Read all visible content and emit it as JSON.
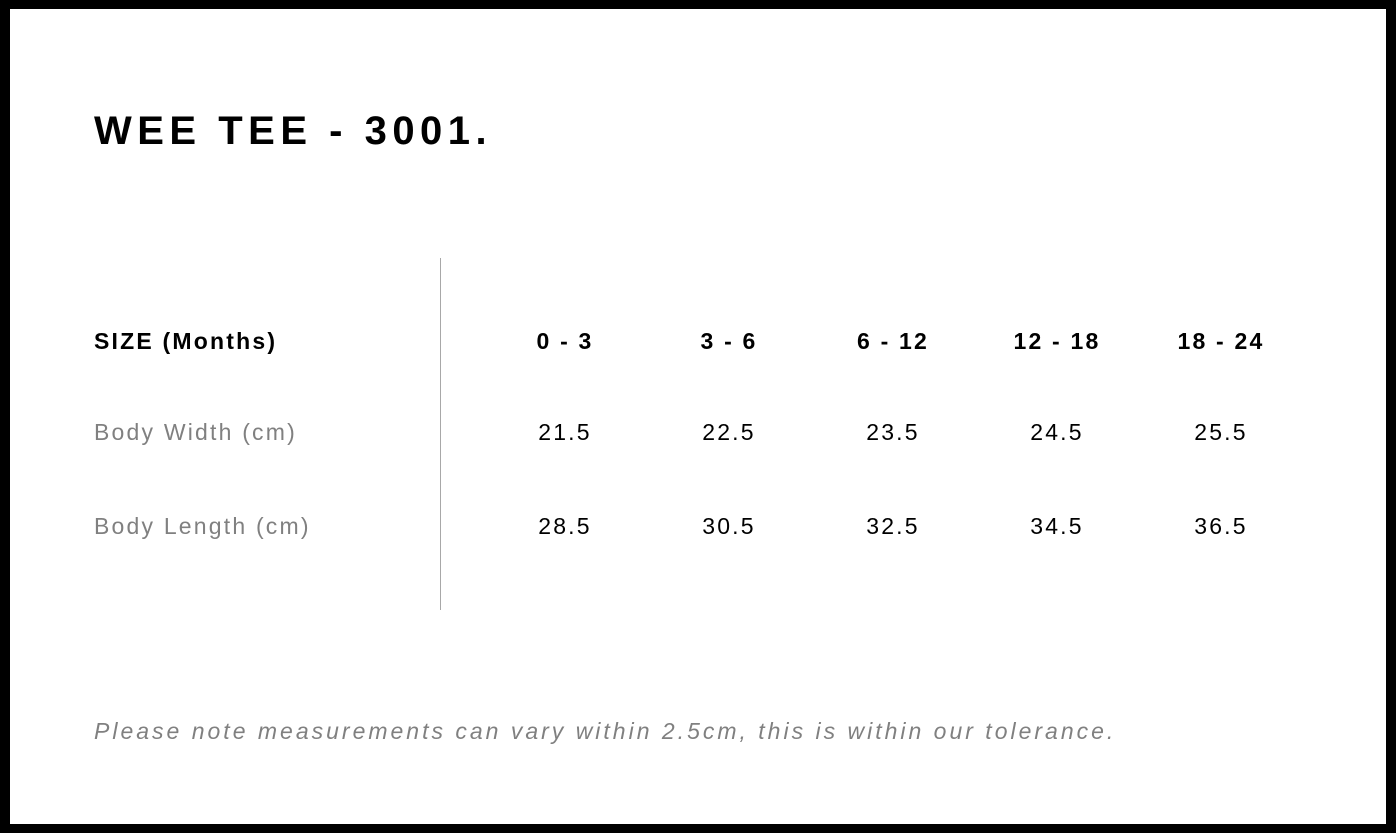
{
  "title": "WEE TEE - 3001.",
  "table": {
    "header": {
      "label": "SIZE (Months)",
      "sizes": [
        "0 - 3",
        "3 - 6",
        "6 - 12",
        "12 - 18",
        "18 - 24"
      ]
    },
    "rows": [
      {
        "label": "Body Width (cm)",
        "values": [
          "21.5",
          "22.5",
          "23.5",
          "24.5",
          "25.5"
        ]
      },
      {
        "label": "Body Length (cm)",
        "values": [
          "28.5",
          "30.5",
          "32.5",
          "34.5",
          "36.5"
        ]
      }
    ]
  },
  "note": "Please note measurements can vary within 2.5cm, this is within our tolerance."
}
